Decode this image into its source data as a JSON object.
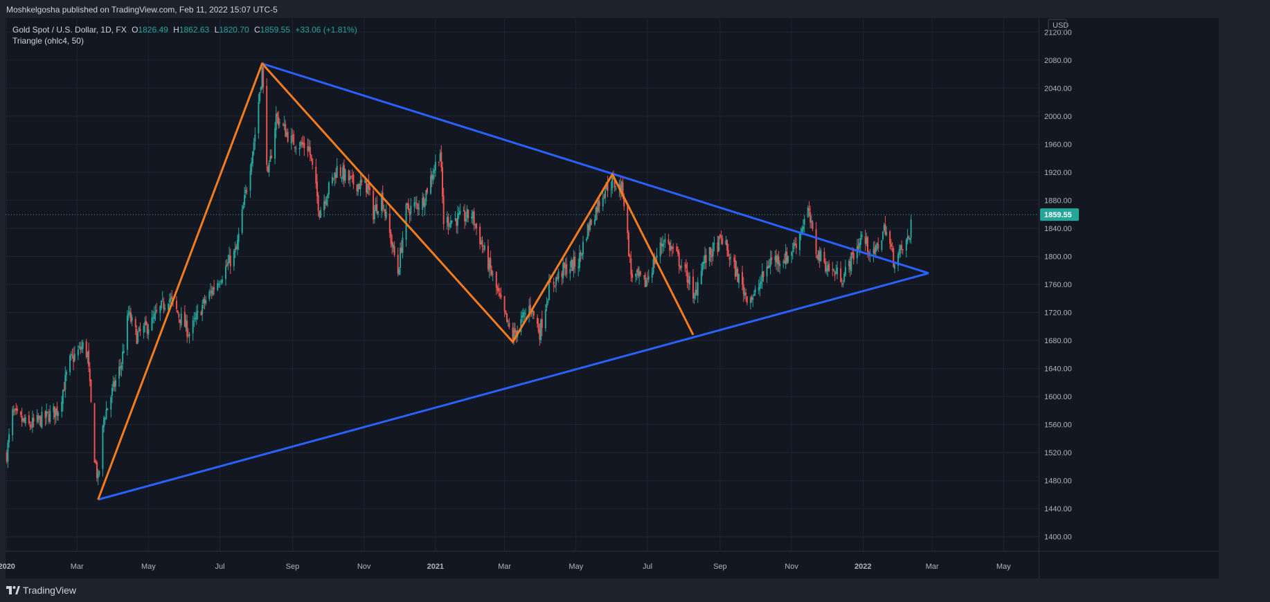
{
  "header": {
    "publish_line": "Moshkelgosha published on TradingView.com, Feb 11, 2022 15:07 UTC-5"
  },
  "legend": {
    "symbol": "Gold Spot / U.S. Dollar, 1D, FX",
    "o_label": "O",
    "o_value": "1826.49",
    "h_label": "H",
    "h_value": "1862.63",
    "l_label": "L",
    "l_value": "1820.70",
    "c_label": "C",
    "c_value": "1859.55",
    "change": "+33.06 (+1.81%)",
    "indicator": "Triangle (ohlc4, 50)"
  },
  "footer": {
    "brand": "TradingView"
  },
  "colors": {
    "up": "#26a69a",
    "down": "#ef5350",
    "pattern": "#f57c1f",
    "triangle": "#2962ff",
    "price_tag": "#26a69a",
    "background": "#131722",
    "grid": "#1f2533"
  },
  "chart_data": {
    "type": "candlestick",
    "currency": "USD",
    "x_range": [
      "2019-12-31",
      "2022-05-31"
    ],
    "ylim": [
      1380,
      2140
    ],
    "price_ticks": [
      "1400.00",
      "1440.00",
      "1480.00",
      "1520.00",
      "1560.00",
      "1600.00",
      "1640.00",
      "1680.00",
      "1720.00",
      "1760.00",
      "1800.00",
      "1840.00",
      "1880.00",
      "1920.00",
      "1960.00",
      "2000.00",
      "2040.00",
      "2080.00",
      "2120.00"
    ],
    "time_ticks": [
      {
        "label": "2020",
        "date": "2020-01-01",
        "bold": true
      },
      {
        "label": "Mar",
        "date": "2020-03-01"
      },
      {
        "label": "May",
        "date": "2020-05-01"
      },
      {
        "label": "Jul",
        "date": "2020-07-01"
      },
      {
        "label": "Sep",
        "date": "2020-09-01"
      },
      {
        "label": "Nov",
        "date": "2020-11-01"
      },
      {
        "label": "2021",
        "date": "2021-01-01",
        "bold": true
      },
      {
        "label": "Mar",
        "date": "2021-03-01"
      },
      {
        "label": "May",
        "date": "2021-05-01"
      },
      {
        "label": "Jul",
        "date": "2021-07-01"
      },
      {
        "label": "Sep",
        "date": "2021-09-01"
      },
      {
        "label": "Nov",
        "date": "2021-11-01"
      },
      {
        "label": "2022",
        "date": "2022-01-01",
        "bold": true
      },
      {
        "label": "Mar",
        "date": "2022-03-01"
      },
      {
        "label": "May",
        "date": "2022-05-01"
      }
    ],
    "last_price": 1859.55,
    "last_price_label": "1859.55",
    "price_anchors": [
      [
        "2020-01-01",
        1518
      ],
      [
        "2020-01-06",
        1575
      ],
      [
        "2020-01-20",
        1558
      ],
      [
        "2020-02-03",
        1570
      ],
      [
        "2020-02-14",
        1582
      ],
      [
        "2020-02-24",
        1650
      ],
      [
        "2020-03-06",
        1672
      ],
      [
        "2020-03-10",
        1660
      ],
      [
        "2020-03-16",
        1515
      ],
      [
        "2020-03-19",
        1478
      ],
      [
        "2020-03-24",
        1570
      ],
      [
        "2020-04-08",
        1648
      ],
      [
        "2020-04-14",
        1718
      ],
      [
        "2020-04-21",
        1686
      ],
      [
        "2020-05-04",
        1706
      ],
      [
        "2020-05-18",
        1742
      ],
      [
        "2020-06-05",
        1690
      ],
      [
        "2020-06-15",
        1726
      ],
      [
        "2020-07-01",
        1770
      ],
      [
        "2020-07-15",
        1808
      ],
      [
        "2020-07-24",
        1900
      ],
      [
        "2020-07-31",
        1975
      ],
      [
        "2020-08-06",
        2067
      ],
      [
        "2020-08-11",
        1910
      ],
      [
        "2020-08-18",
        2000
      ],
      [
        "2020-08-31",
        1965
      ],
      [
        "2020-09-15",
        1955
      ],
      [
        "2020-09-24",
        1865
      ],
      [
        "2020-10-09",
        1925
      ],
      [
        "2020-10-22",
        1905
      ],
      [
        "2020-11-04",
        1900
      ],
      [
        "2020-11-09",
        1862
      ],
      [
        "2020-11-16",
        1885
      ],
      [
        "2020-11-30",
        1778
      ],
      [
        "2020-12-07",
        1865
      ],
      [
        "2020-12-21",
        1878
      ],
      [
        "2021-01-05",
        1950
      ],
      [
        "2021-01-08",
        1850
      ],
      [
        "2021-01-25",
        1855
      ],
      [
        "2021-02-01",
        1860
      ],
      [
        "2021-02-18",
        1775
      ],
      [
        "2021-03-04",
        1700
      ],
      [
        "2021-03-08",
        1685
      ],
      [
        "2021-03-23",
        1730
      ],
      [
        "2021-03-31",
        1692
      ],
      [
        "2021-04-08",
        1755
      ],
      [
        "2021-04-20",
        1780
      ],
      [
        "2021-05-03",
        1792
      ],
      [
        "2021-05-10",
        1835
      ],
      [
        "2021-05-26",
        1898
      ],
      [
        "2021-06-01",
        1905
      ],
      [
        "2021-06-10",
        1895
      ],
      [
        "2021-06-17",
        1775
      ],
      [
        "2021-06-29",
        1762
      ],
      [
        "2021-07-15",
        1825
      ],
      [
        "2021-07-26",
        1800
      ],
      [
        "2021-08-06",
        1765
      ],
      [
        "2021-08-09",
        1732
      ],
      [
        "2021-08-16",
        1788
      ],
      [
        "2021-09-03",
        1825
      ],
      [
        "2021-09-10",
        1795
      ],
      [
        "2021-09-23",
        1745
      ],
      [
        "2021-09-30",
        1742
      ],
      [
        "2021-10-14",
        1795
      ],
      [
        "2021-10-28",
        1798
      ],
      [
        "2021-11-05",
        1820
      ],
      [
        "2021-11-15",
        1865
      ],
      [
        "2021-11-22",
        1808
      ],
      [
        "2021-12-03",
        1782
      ],
      [
        "2021-12-15",
        1770
      ],
      [
        "2021-12-31",
        1828
      ],
      [
        "2022-01-10",
        1800
      ],
      [
        "2022-01-20",
        1842
      ],
      [
        "2022-01-27",
        1795
      ],
      [
        "2022-02-03",
        1808
      ],
      [
        "2022-02-10",
        1828
      ],
      [
        "2022-02-11",
        1859.55
      ]
    ],
    "pattern_lines": [
      {
        "name": "pattern-zigzag",
        "color": "#f57c1f",
        "points": [
          [
            "2020-03-19",
            1453
          ],
          [
            "2020-08-06",
            2075
          ],
          [
            "2021-03-08",
            1678
          ],
          [
            "2021-06-01",
            1917
          ],
          [
            "2021-08-09",
            1688
          ]
        ]
      }
    ],
    "triangle_lines": [
      {
        "name": "triangle-upper-line",
        "color": "#2962ff",
        "points": [
          [
            "2020-08-06",
            2075
          ],
          [
            "2022-02-26",
            1776
          ]
        ]
      },
      {
        "name": "triangle-lower-line",
        "color": "#2962ff",
        "points": [
          [
            "2020-03-19",
            1453
          ],
          [
            "2022-02-26",
            1776
          ]
        ]
      }
    ]
  }
}
